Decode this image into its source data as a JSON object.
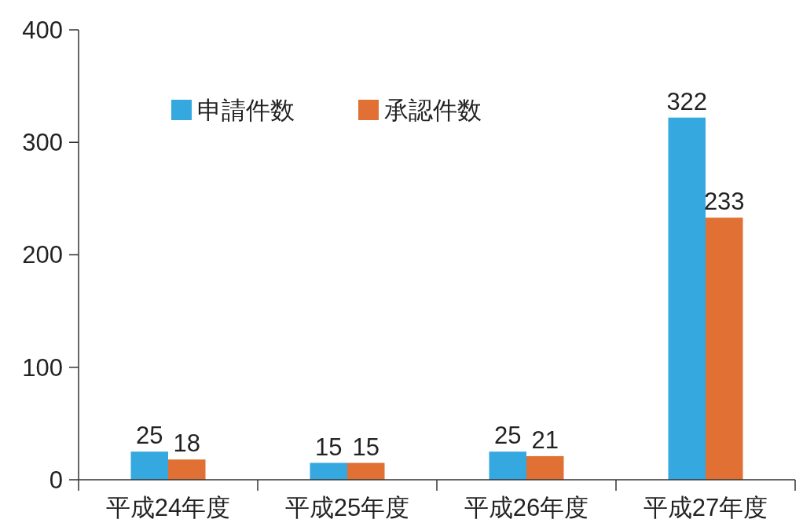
{
  "chart_data": {
    "type": "bar",
    "categories": [
      "平成24年度",
      "平成25年度",
      "平成26年度",
      "平成27年度"
    ],
    "series": [
      {
        "name": "申請件数",
        "color": "#35a8e0",
        "values": [
          25,
          15,
          25,
          322
        ]
      },
      {
        "name": "承認件数",
        "color": "#e07033",
        "values": [
          18,
          15,
          21,
          233
        ]
      }
    ],
    "ylim": [
      0,
      400
    ],
    "yticks": [
      0,
      100,
      200,
      300,
      400
    ],
    "grid": false,
    "legend": "top left",
    "data_labels": true
  }
}
